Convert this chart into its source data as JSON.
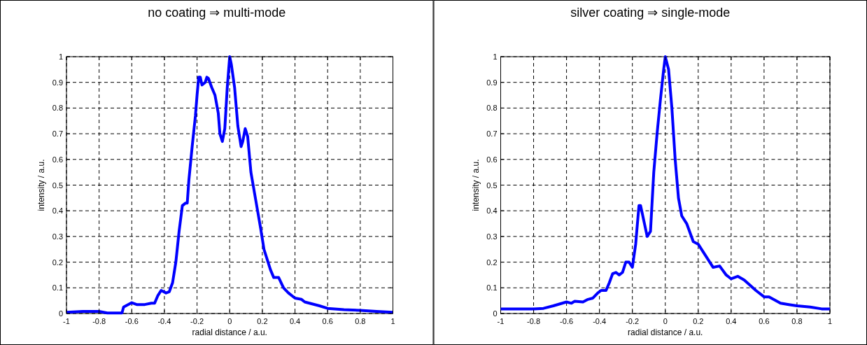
{
  "chart_data": [
    {
      "type": "line",
      "title": "no coating ⇒ multi-mode",
      "xlabel": "radial distance / a.u.",
      "ylabel": "intensity / a.u.",
      "xlim": [
        -1,
        1
      ],
      "ylim": [
        0,
        1
      ],
      "xticks": [
        -1,
        -0.8,
        -0.6,
        -0.4,
        -0.2,
        0,
        0.2,
        0.4,
        0.6,
        0.8,
        1
      ],
      "yticks": [
        0,
        0.1,
        0.2,
        0.3,
        0.4,
        0.5,
        0.6,
        0.7,
        0.8,
        0.9,
        1
      ],
      "grid": true,
      "x": [
        -1,
        -0.9,
        -0.8,
        -0.75,
        -0.66,
        -0.65,
        -0.6,
        -0.57,
        -0.52,
        -0.48,
        -0.46,
        -0.44,
        -0.42,
        -0.39,
        -0.37,
        -0.35,
        -0.33,
        -0.31,
        -0.29,
        -0.27,
        -0.26,
        -0.25,
        -0.23,
        -0.21,
        -0.2,
        -0.19,
        -0.18,
        -0.17,
        -0.15,
        -0.14,
        -0.13,
        -0.11,
        -0.09,
        -0.07,
        -0.06,
        -0.045,
        -0.03,
        -0.015,
        0,
        0.01,
        0.03,
        0.05,
        0.07,
        0.08,
        0.095,
        0.11,
        0.13,
        0.16,
        0.19,
        0.21,
        0.25,
        0.27,
        0.3,
        0.33,
        0.36,
        0.4,
        0.44,
        0.46,
        0.55,
        0.6,
        0.7,
        0.8,
        0.9,
        1
      ],
      "series": [
        {
          "color": "#0000ff",
          "values": [
            0.005,
            0.008,
            0.008,
            0.002,
            0.002,
            0.025,
            0.042,
            0.035,
            0.035,
            0.04,
            0.04,
            0.07,
            0.09,
            0.08,
            0.085,
            0.12,
            0.2,
            0.32,
            0.42,
            0.43,
            0.43,
            0.52,
            0.65,
            0.77,
            0.85,
            0.92,
            0.92,
            0.89,
            0.9,
            0.92,
            0.915,
            0.88,
            0.85,
            0.78,
            0.7,
            0.67,
            0.72,
            0.88,
            1,
            0.97,
            0.88,
            0.73,
            0.65,
            0.67,
            0.72,
            0.69,
            0.55,
            0.44,
            0.33,
            0.25,
            0.17,
            0.14,
            0.14,
            0.1,
            0.08,
            0.06,
            0.055,
            0.045,
            0.03,
            0.02,
            0.015,
            0.012,
            0.008,
            0.005
          ]
        }
      ]
    },
    {
      "type": "line",
      "title": "silver coating ⇒ single-mode",
      "xlabel": "radial distance / a.u.",
      "ylabel": "intensity / a.u.",
      "xlim": [
        -1,
        1
      ],
      "ylim": [
        0,
        1
      ],
      "xticks": [
        -1,
        -0.8,
        -0.6,
        -0.4,
        -0.2,
        0,
        0.2,
        0.4,
        0.6,
        0.8,
        1
      ],
      "yticks": [
        0,
        0.1,
        0.2,
        0.3,
        0.4,
        0.5,
        0.6,
        0.7,
        0.8,
        0.9,
        1
      ],
      "grid": true,
      "x": [
        -1,
        -0.8,
        -0.74,
        -0.68,
        -0.6,
        -0.57,
        -0.55,
        -0.5,
        -0.47,
        -0.44,
        -0.41,
        -0.39,
        -0.36,
        -0.34,
        -0.32,
        -0.3,
        -0.28,
        -0.26,
        -0.24,
        -0.22,
        -0.2,
        -0.18,
        -0.16,
        -0.15,
        -0.13,
        -0.11,
        -0.09,
        -0.07,
        -0.05,
        -0.03,
        -0.01,
        0,
        0.02,
        0.04,
        0.06,
        0.08,
        0.1,
        0.13,
        0.17,
        0.2,
        0.23,
        0.26,
        0.29,
        0.33,
        0.37,
        0.4,
        0.44,
        0.48,
        0.55,
        0.6,
        0.63,
        0.7,
        0.75,
        0.8,
        0.88,
        0.95,
        1
      ],
      "series": [
        {
          "color": "#0000ff",
          "values": [
            0.018,
            0.018,
            0.02,
            0.03,
            0.045,
            0.04,
            0.048,
            0.045,
            0.055,
            0.06,
            0.08,
            0.09,
            0.09,
            0.12,
            0.155,
            0.16,
            0.15,
            0.16,
            0.2,
            0.2,
            0.18,
            0.27,
            0.42,
            0.42,
            0.36,
            0.3,
            0.32,
            0.55,
            0.7,
            0.83,
            0.95,
            1,
            0.95,
            0.8,
            0.6,
            0.45,
            0.38,
            0.35,
            0.28,
            0.27,
            0.24,
            0.21,
            0.18,
            0.185,
            0.15,
            0.135,
            0.145,
            0.13,
            0.09,
            0.065,
            0.065,
            0.04,
            0.035,
            0.03,
            0.025,
            0.018,
            0.018
          ]
        }
      ]
    }
  ]
}
